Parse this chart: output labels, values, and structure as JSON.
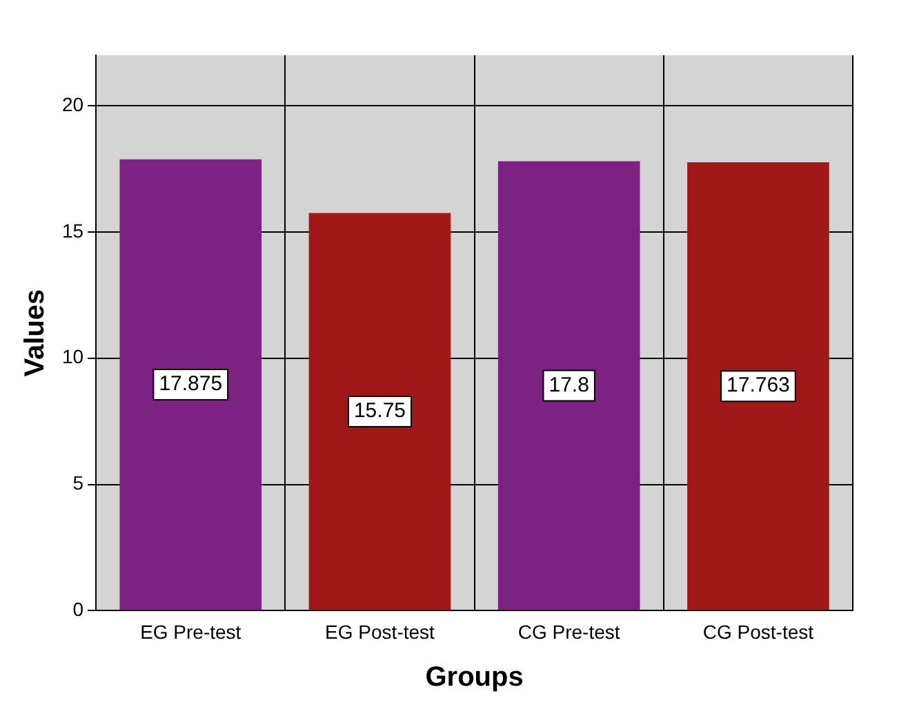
{
  "chart_data": {
    "type": "bar",
    "xlabel": "Groups",
    "ylabel": "Values",
    "categories": [
      "EG Pre-test",
      "EG Post-test",
      "CG Pre-test",
      "CG Post-test"
    ],
    "values": [
      17.875,
      15.75,
      17.8,
      17.763
    ],
    "colors": [
      "#7b2282",
      "#a01818",
      "#7b2282",
      "#a01818"
    ],
    "ylim": [
      0,
      22
    ],
    "yticks": [
      0,
      5,
      10,
      15,
      20
    ],
    "grid": true,
    "data_labels": true
  }
}
